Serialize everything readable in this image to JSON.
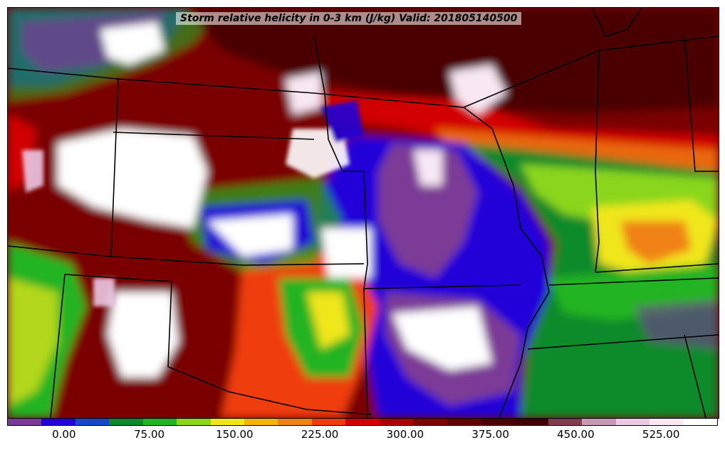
{
  "title": "Storm relative helicity in 0-3 km (J/kg) Valid: 201805140500",
  "colorbar": {
    "colors": [
      "#7b3a96",
      "#2400d8",
      "#1848c8",
      "#0a8a2a",
      "#22b422",
      "#8ad61a",
      "#f0e61a",
      "#f0b40a",
      "#f08214",
      "#f03c0a",
      "#d20000",
      "#aa0000",
      "#7e0000",
      "#600000",
      "#4c0000",
      "#3e0000",
      "#7e3c4e",
      "#c898b4",
      "#ecc8e4",
      "#f8e8f4",
      "#ffffff"
    ],
    "ticks": [
      {
        "label": "0.00",
        "value": 0
      },
      {
        "label": "75.00",
        "value": 75
      },
      {
        "label": "150.00",
        "value": 150
      },
      {
        "label": "225.00",
        "value": 225
      },
      {
        "label": "300.00",
        "value": 300
      },
      {
        "label": "375.00",
        "value": 375
      },
      {
        "label": "450.00",
        "value": 450
      },
      {
        "label": "525.00",
        "value": 525
      }
    ],
    "range": [
      -50,
      575
    ]
  }
}
